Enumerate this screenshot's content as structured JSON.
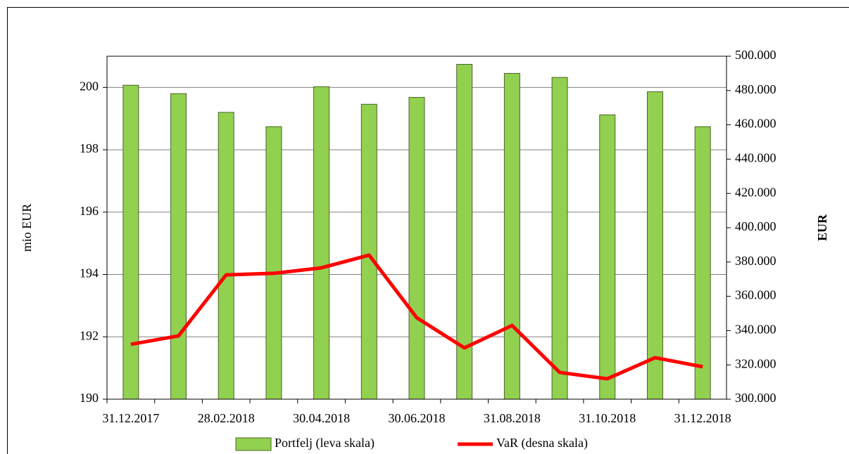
{
  "chart_data": {
    "type": "bar_line",
    "categories": [
      "31.12.2017",
      null,
      "28.02.2018",
      null,
      "30.04.2018",
      null,
      "30.06.2018",
      null,
      "31.08.2018",
      null,
      "31.10.2018",
      null,
      "31.12.2018"
    ],
    "series": [
      {
        "name": "Portfelj (leva skala)",
        "color": "#92d050",
        "type": "bar",
        "values": [
          200.07,
          199.8,
          199.2,
          198.74,
          200.02,
          199.46,
          199.68,
          200.74,
          200.45,
          200.32,
          199.12,
          199.86,
          198.74
        ]
      },
      {
        "name": "VaR (desna skala)",
        "color": "#ff0000",
        "type": "line",
        "axis": "y2",
        "values": [
          332000,
          336900,
          372500,
          373400,
          376600,
          384000,
          347500,
          329900,
          343000,
          315600,
          311900,
          324200,
          318900
        ]
      }
    ],
    "ylabel": "mio EUR",
    "y2label": "EUR",
    "ylim": [
      190,
      201
    ],
    "yticks": [
      190,
      192,
      194,
      196,
      198,
      200
    ],
    "y2lim": [
      300000,
      500000
    ],
    "y2ticks": [
      {
        "value": 300000,
        "label": "300.000"
      },
      {
        "value": 320000,
        "label": "320.000"
      },
      {
        "value": 340000,
        "label": "340.000"
      },
      {
        "value": 360000,
        "label": "360.000"
      },
      {
        "value": 380000,
        "label": "380.000"
      },
      {
        "value": 400000,
        "label": "400.000"
      },
      {
        "value": 420000,
        "label": "420.000"
      },
      {
        "value": 440000,
        "label": "440.000"
      },
      {
        "value": 460000,
        "label": "460.000"
      },
      {
        "value": 480000,
        "label": "480.000"
      },
      {
        "value": 500000,
        "label": "500.000"
      }
    ],
    "grid": true,
    "legend": "bottom"
  }
}
